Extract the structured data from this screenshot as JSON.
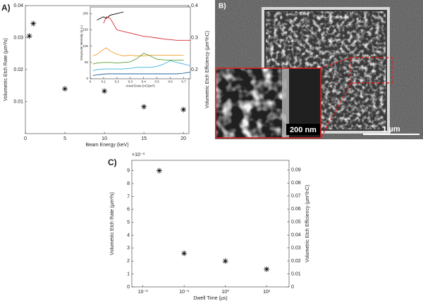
{
  "chart_data": [
    {
      "type": "scatter",
      "panel_label": "A)",
      "x_label": "Beam Energy (keV)",
      "y_label": "Volumetric Etch Rate (µm³/s)",
      "y2_label": "Volumetric Etch Efficiency (µm³/nC)",
      "x": [
        0.5,
        1,
        5,
        10,
        15,
        20
      ],
      "values": [
        0.0305,
        0.0344,
        0.014,
        0.0133,
        0.0084,
        0.0075
      ],
      "color": "#000000",
      "xlim": [
        0,
        20.7
      ],
      "xticks": [
        0,
        5,
        10,
        15,
        20
      ],
      "ylim": [
        0,
        0.04
      ],
      "yticks": [
        0.01,
        0.02,
        0.03,
        0.04
      ],
      "y2lim": [
        0,
        0.4
      ],
      "y2ticks": [
        0.2,
        0.3,
        0.4
      ],
      "grid": false
    },
    {
      "type": "line",
      "x_label": "Areal Dose (nC/µm²)",
      "y_label": "Greyscale Intensity (a.u.)",
      "x": [
        0.02,
        0.05,
        0.1,
        0.12,
        0.15,
        0.2,
        0.25,
        0.3,
        0.35,
        0.4,
        0.45,
        0.5,
        0.55,
        0.6,
        0.65,
        0.7,
        0.75
      ],
      "series": [
        {
          "color": "#000000",
          "values": [
            null,
            180,
            190,
            185,
            195,
            200,
            205,
            null,
            null,
            null,
            null,
            null,
            null,
            null,
            null,
            null,
            null
          ]
        },
        {
          "color": "#d62728",
          "values": [
            null,
            null,
            170,
            190,
            185,
            150,
            145,
            140,
            135,
            130,
            128,
            125,
            122,
            120,
            118,
            118,
            118
          ]
        },
        {
          "color": "#f0a030",
          "values": [
            70,
            75,
            90,
            95,
            85,
            75,
            70,
            72,
            70,
            70,
            72,
            72,
            72,
            72,
            72,
            72,
            null
          ]
        },
        {
          "color": "#5a9e2f",
          "values": [
            45,
            48,
            50,
            50,
            50,
            48,
            50,
            52,
            62,
            78,
            70,
            60,
            58,
            57,
            57,
            57,
            null
          ]
        },
        {
          "color": "#3fb0e0",
          "values": [
            25,
            28,
            30,
            30,
            30,
            30,
            30,
            32,
            35,
            35,
            35,
            38,
            45,
            55,
            50,
            45,
            40
          ]
        },
        {
          "color": "#1f5f9f",
          "values": [
            10,
            12,
            14,
            15,
            15,
            15,
            15,
            15,
            15,
            15,
            15,
            15,
            15,
            15,
            15,
            17,
            20
          ]
        }
      ],
      "xlim": [
        0,
        0.75
      ],
      "xticks": [
        0,
        0.1,
        0.2,
        0.3,
        0.4,
        0.5,
        0.6,
        0.7
      ],
      "ylim": [
        0,
        220
      ],
      "yticks": [
        0,
        50,
        100,
        150,
        200
      ],
      "grid": false
    },
    {
      "type": "scatter",
      "panel_label": "C)",
      "x_label": "Dwell Time (µs)",
      "y_label": "Volumetric Etch Rate (µm³/s)",
      "y2_label": "Volumetric Etch Efficiency (µm³/nC)",
      "y_multiplier": "×10⁻³",
      "x_log": true,
      "x": [
        0.025,
        0.1,
        1,
        10
      ],
      "values": [
        9.0,
        2.6,
        2.0,
        1.37
      ],
      "color": "#000000",
      "xlim": [
        0.0054,
        35
      ],
      "xticks": [
        {
          "value": 0.01,
          "label": "10⁻²"
        },
        {
          "value": 0.1,
          "label": "10⁻¹"
        },
        {
          "value": 1,
          "label": "10⁰"
        },
        {
          "value": 10,
          "label": "10¹"
        }
      ],
      "ylim": [
        0,
        9.8
      ],
      "yticks": [
        0,
        1,
        2,
        3,
        4,
        5,
        6,
        7,
        8,
        9
      ],
      "y2lim": [
        0,
        0.0975
      ],
      "y2ticks": [
        0,
        0.01,
        0.02,
        0.03,
        0.04,
        0.05,
        0.06,
        0.07,
        0.08,
        0.09
      ],
      "grid": false
    }
  ],
  "image_panel": {
    "panel_label": "B)",
    "inset_scale_bar": "200 nm",
    "scale_bar": "1 µm"
  }
}
